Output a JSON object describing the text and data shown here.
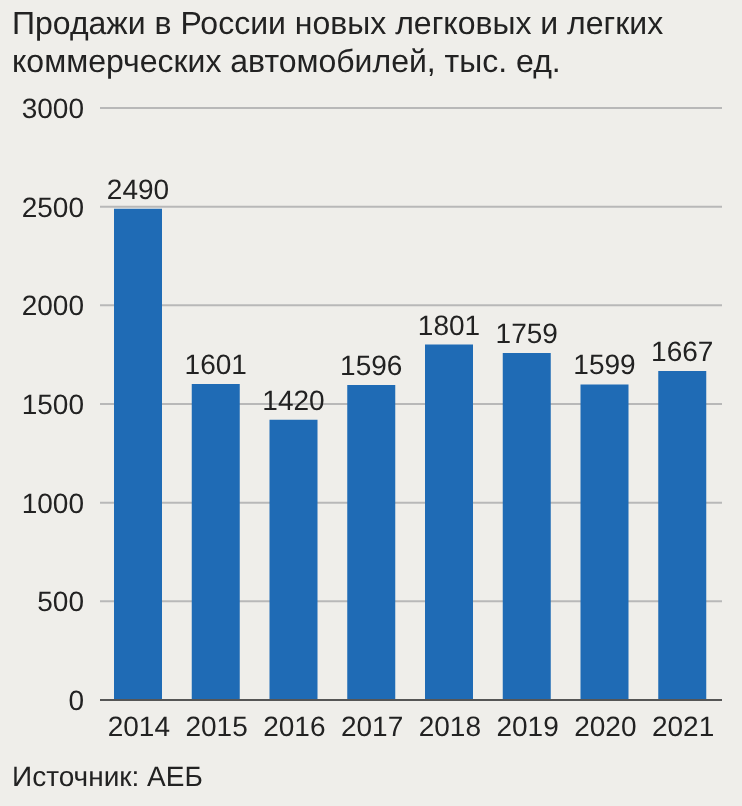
{
  "chart_data": {
    "type": "bar",
    "title": "Продажи в России новых легковых и легких коммерческих автомобилей, тыс. ед.",
    "categories": [
      "2014",
      "2015",
      "2016",
      "2017",
      "2018",
      "2019",
      "2020",
      "2021"
    ],
    "values": [
      2490,
      1601,
      1420,
      1596,
      1801,
      1759,
      1599,
      1667
    ],
    "color": "#1f6bb5",
    "ylim": [
      0,
      3000
    ],
    "yticks": [
      0,
      500,
      1000,
      1500,
      2000,
      2500,
      3000
    ],
    "grid": "y",
    "data_labels": true,
    "annotations": [
      "Источник: АЕБ"
    ]
  }
}
